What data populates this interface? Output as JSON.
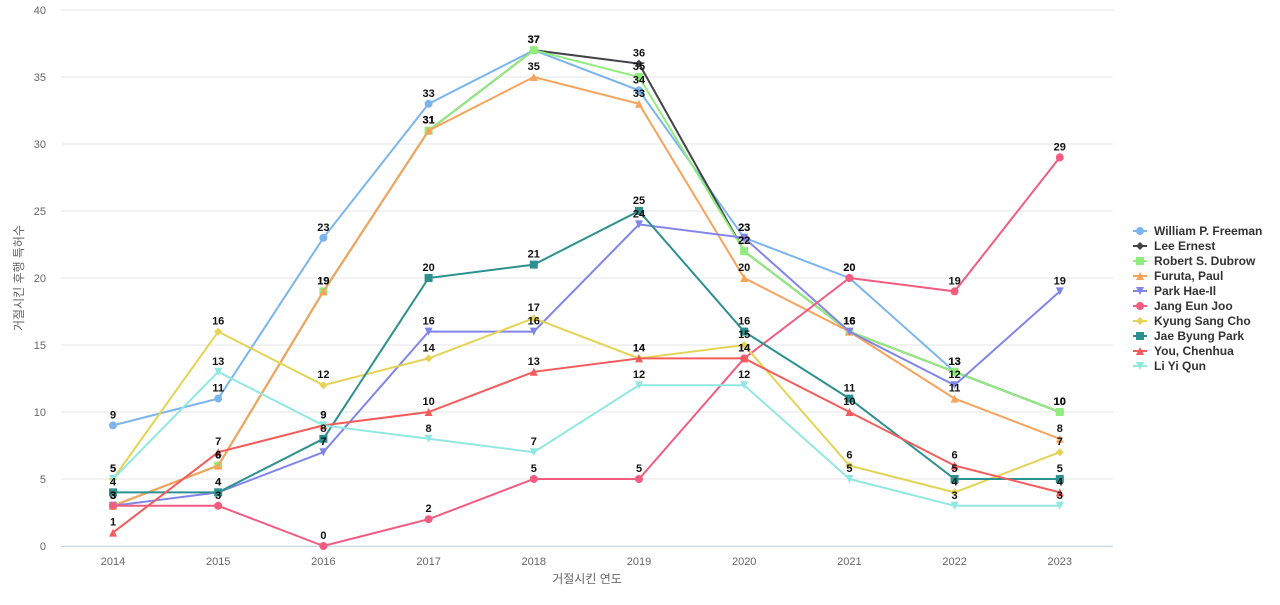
{
  "chart_data": {
    "type": "line",
    "title": "",
    "xlabel": "거절시킨 연도",
    "ylabel": "거절시킨 후행 특허수",
    "x": [
      "2014",
      "2015",
      "2016",
      "2017",
      "2018",
      "2019",
      "2020",
      "2021",
      "2022",
      "2023"
    ],
    "ylim": [
      0,
      40
    ],
    "yticks": [
      0,
      5,
      10,
      15,
      20,
      25,
      30,
      35,
      40
    ],
    "grid": true,
    "legend_position": "right",
    "series": [
      {
        "name": "William P. Freeman",
        "color": "#7cb5ec",
        "marker": "circle",
        "values": [
          9,
          11,
          23,
          33,
          37,
          34,
          23,
          20,
          13,
          10
        ]
      },
      {
        "name": "Lee Ernest",
        "color": "#434348",
        "marker": "diamond",
        "values": [
          3,
          6,
          19,
          31,
          37,
          36,
          22,
          16,
          13,
          10
        ]
      },
      {
        "name": "Robert S. Dubrow",
        "color": "#90ed7d",
        "marker": "square",
        "values": [
          3,
          6,
          19,
          31,
          37,
          35,
          22,
          16,
          13,
          10
        ]
      },
      {
        "name": "Furuta, Paul",
        "color": "#f7a35c",
        "marker": "triangle",
        "values": [
          3,
          6,
          19,
          31,
          35,
          33,
          20,
          16,
          11,
          8
        ]
      },
      {
        "name": "Park Hae-Il",
        "color": "#8085e9",
        "marker": "triangle-down",
        "values": [
          3,
          4,
          7,
          16,
          16,
          24,
          23,
          16,
          12,
          19
        ]
      },
      {
        "name": "Jang Eun Joo",
        "color": "#f15c80",
        "marker": "circle",
        "values": [
          3,
          3,
          0,
          2,
          5,
          5,
          14,
          20,
          19,
          29
        ]
      },
      {
        "name": "Kyung Sang Cho",
        "color": "#e4d354",
        "marker": "diamond",
        "values": [
          5,
          16,
          12,
          14,
          17,
          14,
          15,
          6,
          4,
          7
        ]
      },
      {
        "name": "Jae Byung Park",
        "color": "#2b908f",
        "marker": "square",
        "values": [
          4,
          4,
          8,
          20,
          21,
          25,
          16,
          11,
          5,
          5
        ]
      },
      {
        "name": "You, Chenhua",
        "color": "#f45b5b",
        "marker": "triangle",
        "values": [
          1,
          7,
          9,
          10,
          13,
          14,
          14,
          10,
          6,
          4
        ]
      },
      {
        "name": "Li Yi Qun",
        "color": "#91e8e1",
        "marker": "triangle-down",
        "values": [
          5,
          13,
          9,
          8,
          7,
          12,
          12,
          5,
          3,
          3
        ]
      }
    ]
  }
}
